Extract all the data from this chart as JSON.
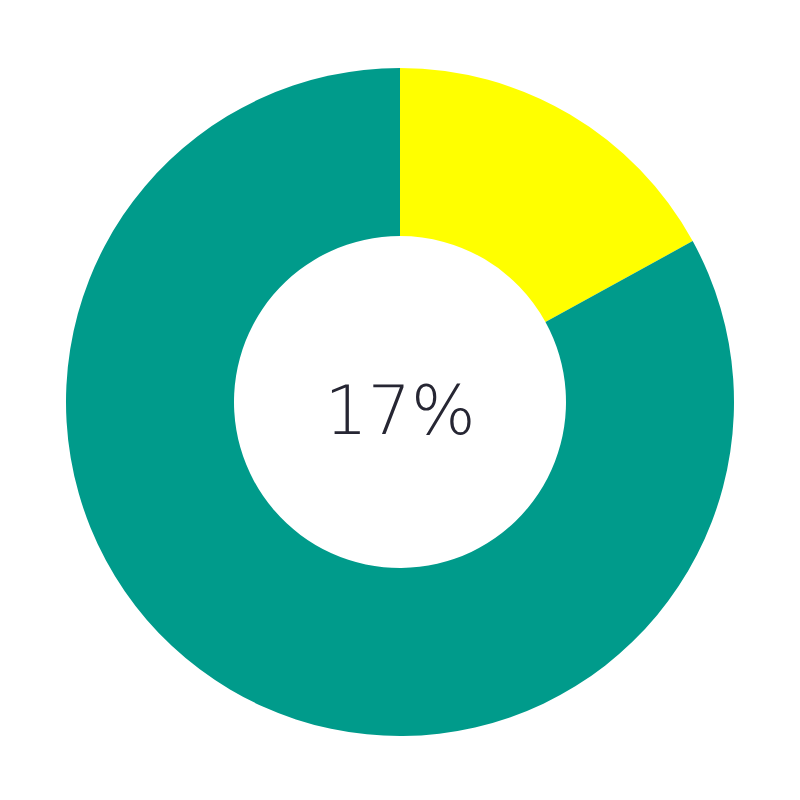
{
  "chart_data": {
    "type": "donut",
    "categories": [
      null,
      null
    ],
    "values": [
      17,
      83
    ],
    "colors": [
      "#ffff00",
      "#009b8b"
    ],
    "annotations": [
      "17%"
    ]
  }
}
